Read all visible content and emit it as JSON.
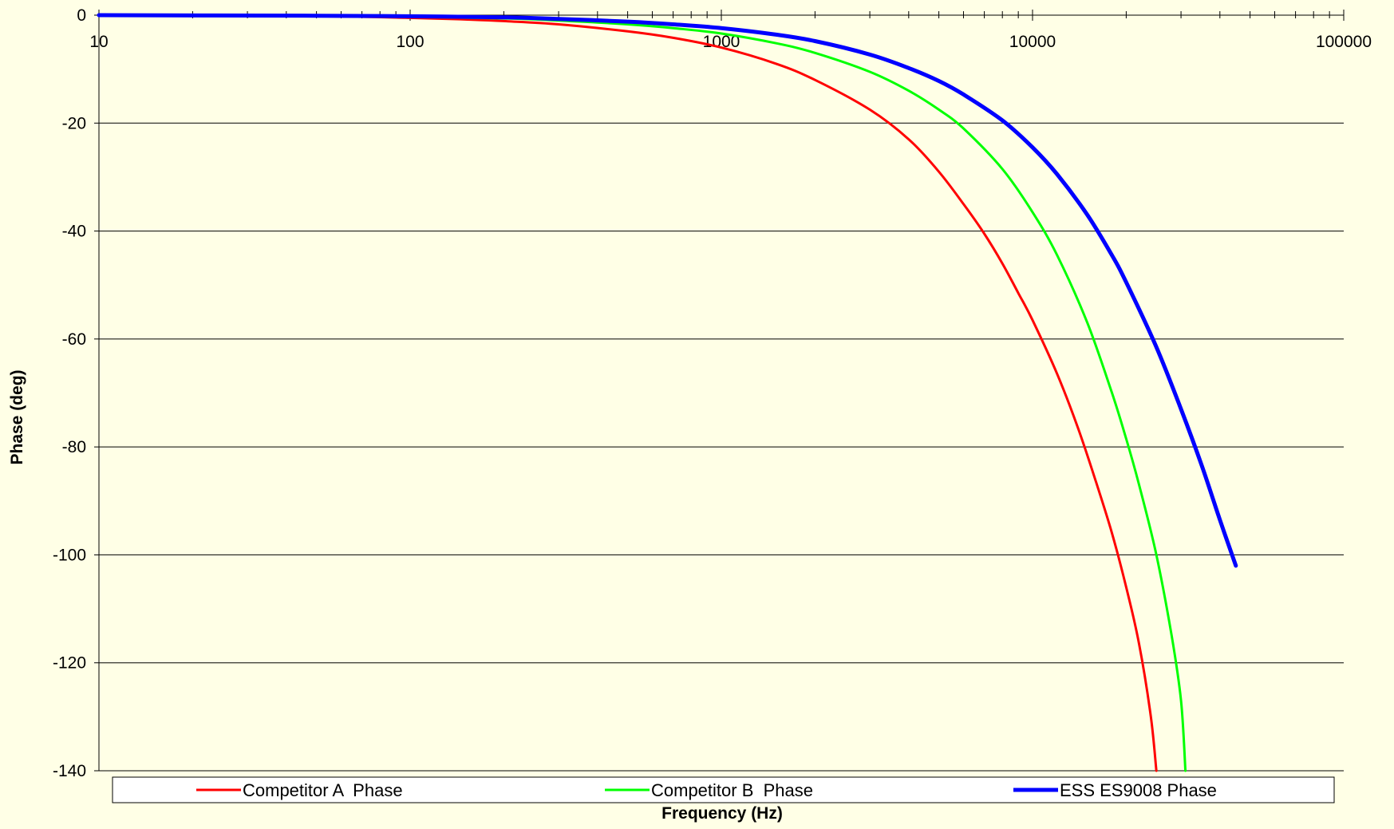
{
  "chart_data": {
    "type": "line",
    "xlabel": "Frequency (Hz)",
    "ylabel": "Phase (deg)",
    "x_scale": "log",
    "xlim": [
      10,
      100000
    ],
    "ylim": [
      -140,
      0
    ],
    "x_ticks": [
      "10",
      "100",
      "1000",
      "10000",
      "100000"
    ],
    "y_ticks": [
      "0",
      "-20",
      "-40",
      "-60",
      "-80",
      "-100",
      "-120",
      "-140"
    ],
    "grid": "horizontal",
    "legend_position": "bottom",
    "series": [
      {
        "name": "Competitor A  Phase",
        "color": "#ff0000",
        "x": [
          10,
          50,
          100,
          150,
          200,
          300,
          500,
          700,
          1000,
          1500,
          2000,
          3000,
          4000,
          5000,
          6000,
          7000,
          8000,
          9000,
          10000,
          12000,
          14000,
          16000,
          18000,
          20000,
          22000,
          24000,
          25000
        ],
        "y": [
          0,
          -0.2,
          -0.5,
          -0.8,
          -1.1,
          -1.7,
          -3.0,
          -4.2,
          -6.0,
          -9.0,
          -12.0,
          -17.5,
          -23.0,
          -29.0,
          -35.0,
          -40.5,
          -46.0,
          -51.5,
          -56.5,
          -66.5,
          -76.5,
          -86.5,
          -96.0,
          -106.0,
          -116.5,
          -130.0,
          -140.0
        ]
      },
      {
        "name": "Competitor B  Phase",
        "color": "#00ff00",
        "x": [
          10,
          50,
          100,
          200,
          300,
          500,
          700,
          1000,
          1500,
          2000,
          3000,
          4000,
          5000,
          6000,
          8000,
          10000,
          12000,
          15000,
          18000,
          20000,
          22000,
          25000,
          28000,
          30000,
          31000
        ],
        "y": [
          0,
          -0.1,
          -0.3,
          -0.6,
          -1.0,
          -1.7,
          -2.4,
          -3.4,
          -5.2,
          -7.0,
          -10.5,
          -14.0,
          -17.5,
          -21.0,
          -28.5,
          -36.5,
          -44.5,
          -57.0,
          -70.0,
          -78.5,
          -87.0,
          -100.0,
          -115.0,
          -127.0,
          -140.0
        ]
      },
      {
        "name": "ESS ES9008 Phase",
        "color": "#0000ff",
        "x": [
          10,
          50,
          100,
          200,
          300,
          500,
          700,
          1000,
          1500,
          2000,
          3000,
          4000,
          5000,
          6000,
          8000,
          10000,
          12000,
          15000,
          18000,
          20000,
          25000,
          30000,
          35000,
          40000,
          45000
        ],
        "y": [
          0,
          -0.1,
          -0.2,
          -0.4,
          -0.7,
          -1.2,
          -1.7,
          -2.4,
          -3.6,
          -4.8,
          -7.3,
          -9.8,
          -12.2,
          -14.7,
          -19.5,
          -24.5,
          -29.5,
          -37.0,
          -44.5,
          -49.5,
          -61.5,
          -73.0,
          -83.5,
          -93.5,
          -102.0
        ]
      }
    ]
  }
}
